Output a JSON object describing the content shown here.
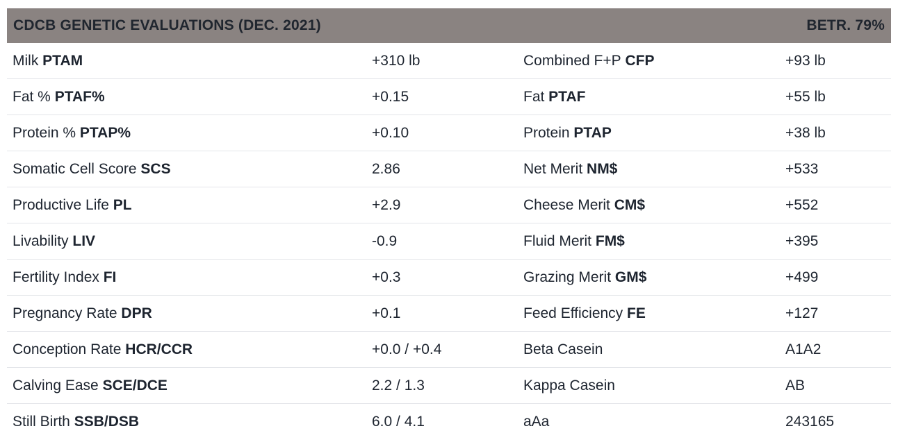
{
  "header": {
    "title": "CDCB GENETIC EVALUATIONS (DEC. 2021)",
    "reliability": "BETR. 79%"
  },
  "colors": {
    "header_bg": "#8a8381",
    "text": "#1d242f",
    "divider": "#e3e5e9",
    "background": "#ffffff"
  },
  "table": {
    "rows": [
      {
        "left": {
          "label": "Milk",
          "abbr": "PTAM",
          "value": "+310 lb"
        },
        "right": {
          "label": "Combined F+P",
          "abbr": "CFP",
          "value": "+93 lb"
        }
      },
      {
        "left": {
          "label": "Fat %",
          "abbr": "PTAF%",
          "value": "+0.15"
        },
        "right": {
          "label": "Fat",
          "abbr": "PTAF",
          "value": "+55 lb"
        }
      },
      {
        "left": {
          "label": "Protein %",
          "abbr": "PTAP%",
          "value": "+0.10"
        },
        "right": {
          "label": "Protein",
          "abbr": "PTAP",
          "value": "+38 lb"
        }
      },
      {
        "left": {
          "label": "Somatic Cell Score",
          "abbr": "SCS",
          "value": "2.86"
        },
        "right": {
          "label": "Net Merit",
          "abbr": "NM$",
          "value": "+533"
        }
      },
      {
        "left": {
          "label": "Productive Life",
          "abbr": "PL",
          "value": "+2.9"
        },
        "right": {
          "label": "Cheese Merit",
          "abbr": "CM$",
          "value": "+552"
        }
      },
      {
        "left": {
          "label": "Livability",
          "abbr": "LIV",
          "value": "-0.9"
        },
        "right": {
          "label": "Fluid Merit",
          "abbr": "FM$",
          "value": "+395"
        }
      },
      {
        "left": {
          "label": "Fertility Index",
          "abbr": "FI",
          "value": "+0.3"
        },
        "right": {
          "label": "Grazing Merit",
          "abbr": "GM$",
          "value": "+499"
        }
      },
      {
        "left": {
          "label": "Pregnancy Rate",
          "abbr": "DPR",
          "value": "+0.1"
        },
        "right": {
          "label": "Feed Efficiency",
          "abbr": "FE",
          "value": "+127"
        }
      },
      {
        "left": {
          "label": "Conception Rate",
          "abbr": "HCR/CCR",
          "value": "+0.0 / +0.4"
        },
        "right": {
          "label": "Beta Casein",
          "abbr": "",
          "value": "A1A2"
        }
      },
      {
        "left": {
          "label": "Calving Ease",
          "abbr": "SCE/DCE",
          "value": "2.2 / 1.3"
        },
        "right": {
          "label": "Kappa Casein",
          "abbr": "",
          "value": "AB"
        }
      },
      {
        "left": {
          "label": "Still Birth",
          "abbr": "SSB/DSB",
          "value": "6.0 / 4.1"
        },
        "right": {
          "label": "aAa",
          "abbr": "",
          "value": "243165"
        }
      }
    ]
  }
}
